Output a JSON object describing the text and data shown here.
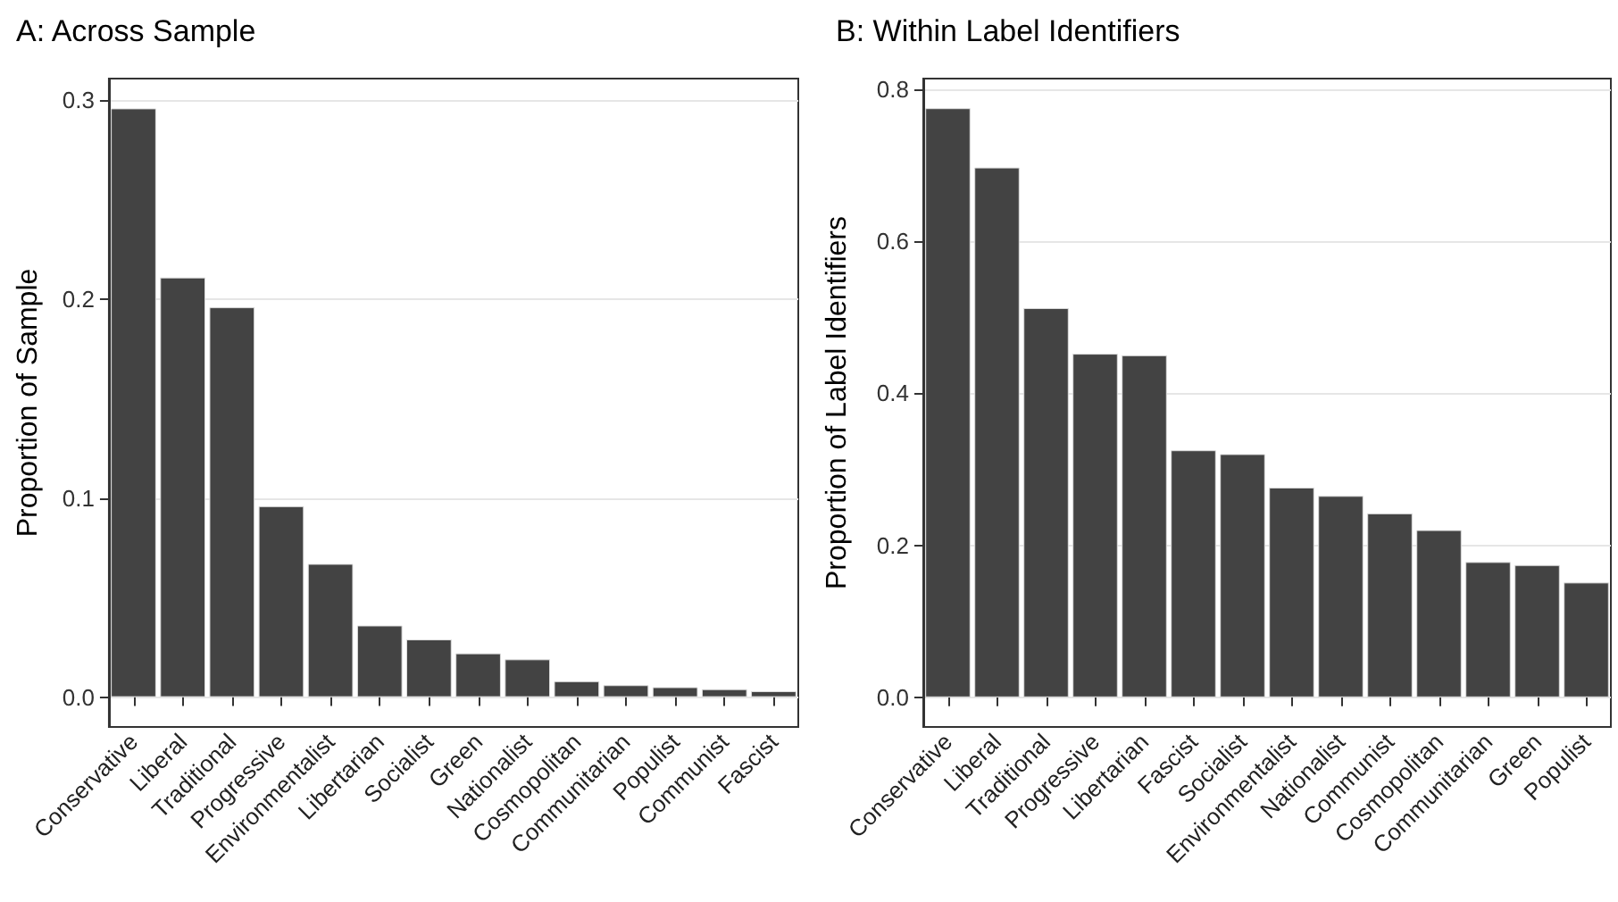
{
  "chart_data": [
    {
      "type": "bar",
      "title": "A: Across Sample",
      "ylabel": "Proportion of Sample",
      "categories": [
        "Conservative",
        "Liberal",
        "Traditional",
        "Progressive",
        "Environmentalist",
        "Libertarian",
        "Socialist",
        "Green",
        "Nationalist",
        "Cosmopolitan",
        "Communitarian",
        "Populist",
        "Communist",
        "Fascist"
      ],
      "values": [
        0.296,
        0.211,
        0.196,
        0.096,
        0.067,
        0.036,
        0.029,
        0.022,
        0.019,
        0.008,
        0.006,
        0.005,
        0.004,
        0.003
      ],
      "color": "#434343",
      "ylim": [
        -0.015,
        0.311
      ],
      "yticks": [
        {
          "value": 0,
          "label": "0.0"
        },
        0.1,
        0.2,
        0.3
      ],
      "grid": "y"
    },
    {
      "type": "bar",
      "title": "B: Within Label Identifiers",
      "ylabel": "Proportion of Label Identifiers",
      "categories": [
        "Conservative",
        "Liberal",
        "Traditional",
        "Progressive",
        "Libertarian",
        "Fascist",
        "Socialist",
        "Environmentalist",
        "Nationalist",
        "Communist",
        "Cosmopolitan",
        "Communitarian",
        "Green",
        "Populist"
      ],
      "values": [
        0.775,
        0.697,
        0.512,
        0.452,
        0.45,
        0.325,
        0.32,
        0.276,
        0.265,
        0.242,
        0.22,
        0.178,
        0.174,
        0.151
      ],
      "color": "#434343",
      "ylim": [
        -0.039,
        0.814
      ],
      "yticks": [
        {
          "value": 0,
          "label": "0.0"
        },
        0.2,
        0.4,
        0.6,
        0.8
      ],
      "grid": "y"
    }
  ]
}
